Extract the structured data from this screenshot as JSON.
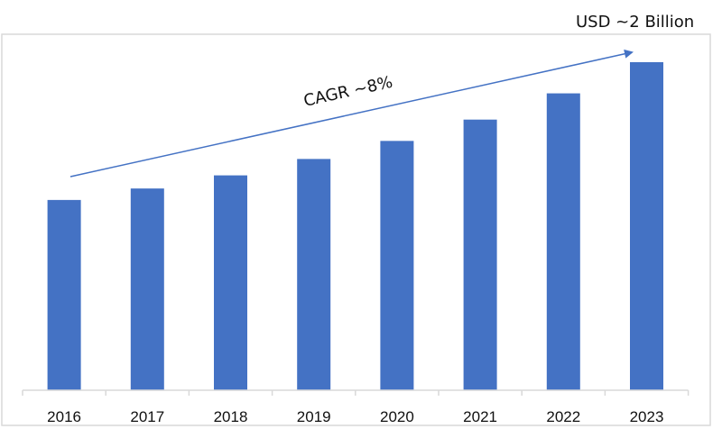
{
  "chart_data": {
    "type": "bar",
    "title": "",
    "xlabel": "",
    "ylabel": "",
    "categories": [
      "2016",
      "2017",
      "2018",
      "2019",
      "2020",
      "2021",
      "2022",
      "2023"
    ],
    "values": [
      1.16,
      1.23,
      1.31,
      1.41,
      1.52,
      1.65,
      1.81,
      2.0
    ],
    "unit": "USD Billion",
    "ylim": [
      0,
      2.0
    ],
    "grid": false,
    "bar_color": "#4472C4",
    "annotations": {
      "end_value": "USD ~2 Billion",
      "trend": "CAGR ~8%"
    }
  }
}
